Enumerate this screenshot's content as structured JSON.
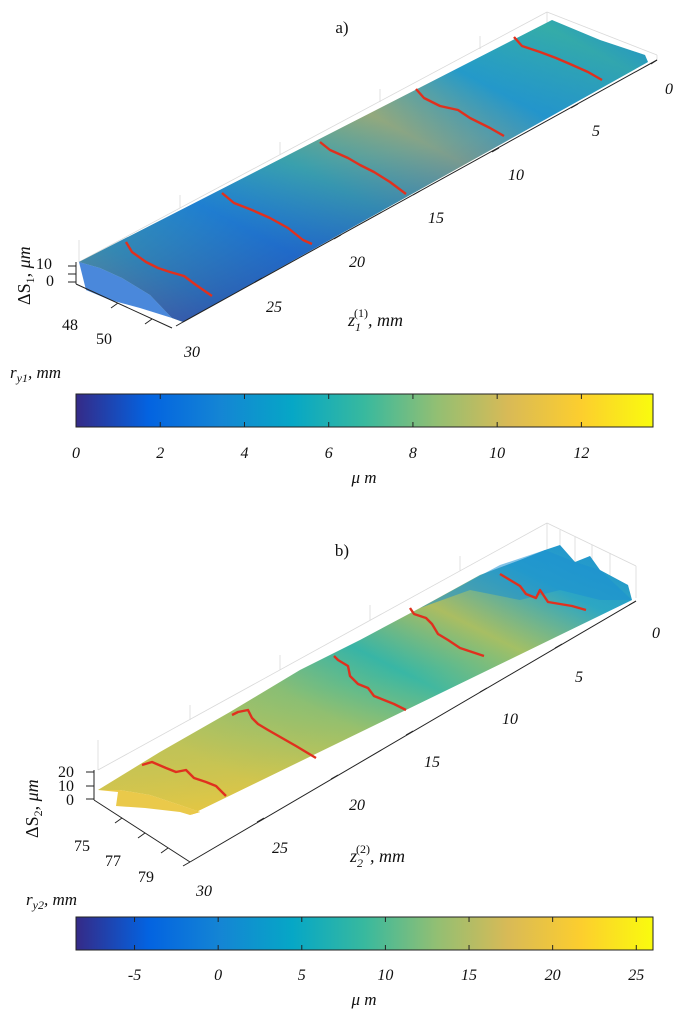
{
  "chart_data": [
    {
      "type": "surface",
      "panel_label": "a)",
      "zlabel": "ΔS",
      "zlabel_sub": "1",
      "zlabel_unit": ", μm",
      "xlabel": "z",
      "xlabel_sub": "1",
      "xlabel_sup": "(1)",
      "xlabel_unit": ", mm",
      "ylabel": "r",
      "ylabel_sub": "y1",
      "ylabel_unit": ", mm",
      "x_ticks": [
        "0",
        "5",
        "10",
        "15",
        "20",
        "25",
        "30"
      ],
      "y_ticks": [
        "48",
        "50"
      ],
      "z_ticks": [
        "10",
        "0"
      ],
      "xlim": [
        0,
        30
      ],
      "colorbar": {
        "label": "μ m",
        "range": [
          0,
          13.7
        ],
        "ticks": [
          "0",
          "2",
          "4",
          "6",
          "8",
          "10",
          "12"
        ],
        "tick_values": [
          0,
          2,
          4,
          6,
          8,
          10,
          12
        ]
      },
      "red_lines_at_z": [
        5,
        10,
        15,
        20,
        25
      ],
      "colormap": "parula"
    },
    {
      "type": "surface",
      "panel_label": "b)",
      "zlabel": "ΔS",
      "zlabel_sub": "2",
      "zlabel_unit": ", μm",
      "xlabel": "z",
      "xlabel_sub": "2",
      "xlabel_sup": "(2)",
      "xlabel_unit": ", mm",
      "ylabel": "r",
      "ylabel_sub": "y2",
      "ylabel_unit": ", mm",
      "x_ticks": [
        "0",
        "5",
        "10",
        "15",
        "20",
        "25",
        "30"
      ],
      "y_ticks": [
        "75",
        "77",
        "79"
      ],
      "z_ticks": [
        "20",
        "10",
        "0"
      ],
      "xlim": [
        0,
        30
      ],
      "colorbar": {
        "label": "μ m",
        "range": [
          -8.5,
          26
        ],
        "ticks": [
          "-5",
          "0",
          "5",
          "10",
          "15",
          "20",
          "25"
        ],
        "tick_values": [
          -5,
          0,
          5,
          10,
          15,
          20,
          25
        ]
      },
      "red_lines_at_z": [
        5,
        10,
        15,
        20,
        25
      ],
      "colormap": "parula"
    }
  ]
}
